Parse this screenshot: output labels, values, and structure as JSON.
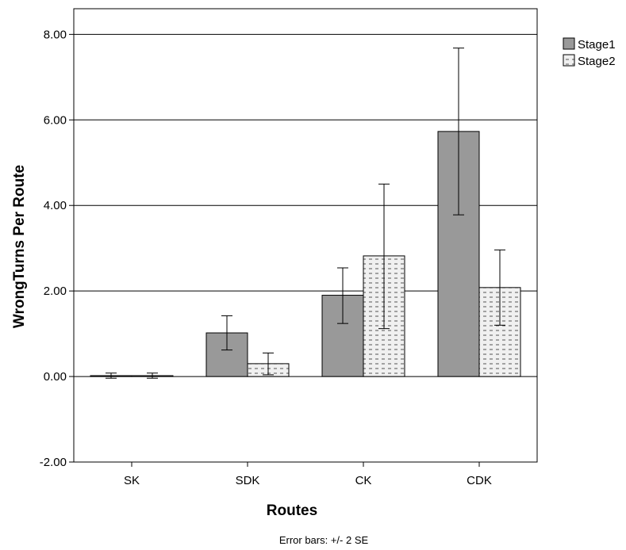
{
  "chart_data": {
    "type": "bar",
    "categories": [
      "SK",
      "SDK",
      "CK",
      "CDK"
    ],
    "series": [
      {
        "name": "Stage1",
        "values": [
          0.02,
          1.02,
          1.9,
          5.73
        ],
        "error_low": [
          -0.04,
          0.62,
          1.24,
          3.78
        ],
        "error_high": [
          0.08,
          1.42,
          2.54,
          7.68
        ],
        "color": "#999999",
        "pattern": "solid"
      },
      {
        "name": "Stage2",
        "values": [
          0.02,
          0.3,
          2.82,
          2.08
        ],
        "error_low": [
          -0.04,
          0.04,
          1.12,
          1.2
        ],
        "error_high": [
          0.08,
          0.55,
          4.5,
          2.96
        ],
        "color": "#f0f0f0",
        "pattern": "dashes"
      }
    ],
    "xlabel": "Routes",
    "ylabel": "WrongTurns Per Route",
    "ylim": [
      -2.0,
      8.6
    ],
    "yticks": [
      "-2.00",
      "0.00",
      "2.00",
      "4.00",
      "6.00",
      "8.00"
    ],
    "ytick_values": [
      -2,
      0,
      2,
      4,
      6,
      8
    ],
    "grid": true,
    "legend_position": "top-right, outside plot",
    "footnote": "Error bars: +/- 2 SE"
  }
}
